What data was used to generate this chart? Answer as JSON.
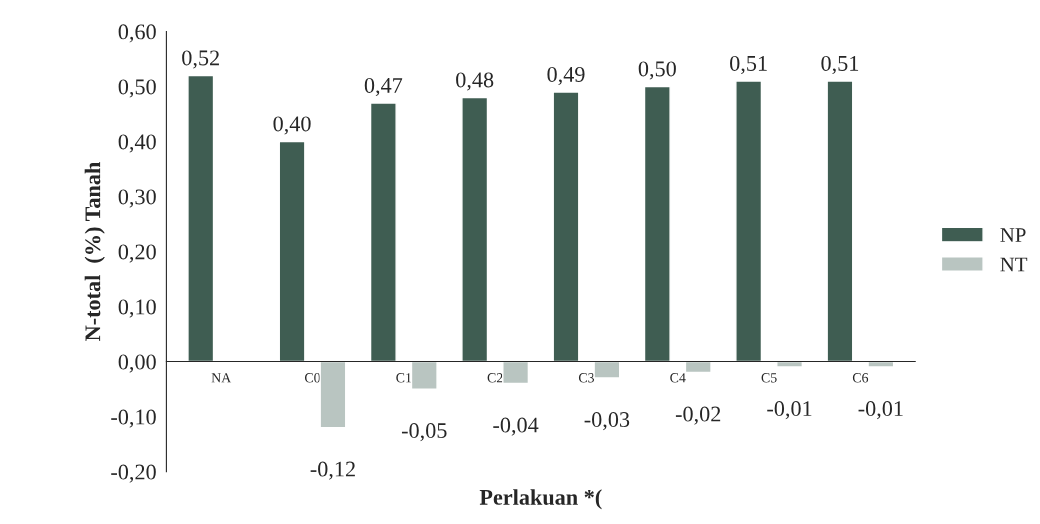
{
  "chart_data": {
    "type": "bar",
    "xlabel": "Perlakuan *(",
    "ylabel": "N-total  (%) Tanah",
    "categories": [
      "NA",
      "C0",
      "C1",
      "C2",
      "C3",
      "C4",
      "C5",
      "C6"
    ],
    "series": [
      {
        "name": "NP",
        "color": "#3f5d52",
        "values": [
          0.52,
          0.4,
          0.47,
          0.48,
          0.49,
          0.5,
          0.51,
          0.51
        ],
        "value_labels": [
          "0,52",
          "0,40",
          "0,47",
          "0,48",
          "0,49",
          "0,50",
          "0,51",
          "0,51"
        ]
      },
      {
        "name": "NT",
        "color": "#b9c5c1",
        "values": [
          null,
          -0.12,
          -0.05,
          -0.04,
          -0.03,
          -0.02,
          -0.01,
          -0.01
        ],
        "value_labels": [
          null,
          "-0,12",
          "-0,05",
          "-0,04",
          "-0,03",
          "-0,02",
          "-0,01",
          "-0,01"
        ]
      }
    ],
    "ylim": [
      -0.2,
      0.6
    ],
    "yticks": [
      {
        "value": -0.2,
        "label": "-0,20"
      },
      {
        "value": -0.1,
        "label": "-0,10"
      },
      {
        "value": 0,
        "label": "0,00"
      },
      {
        "value": 0.1,
        "label": "0,10"
      },
      {
        "value": 0.2,
        "label": "0,20"
      },
      {
        "value": 0.3,
        "label": "0,30"
      },
      {
        "value": 0.4,
        "label": "0,40"
      },
      {
        "value": 0.5,
        "label": "0,50"
      },
      {
        "value": 0.6,
        "label": "0,60"
      }
    ],
    "grid": false,
    "legend": "right"
  }
}
